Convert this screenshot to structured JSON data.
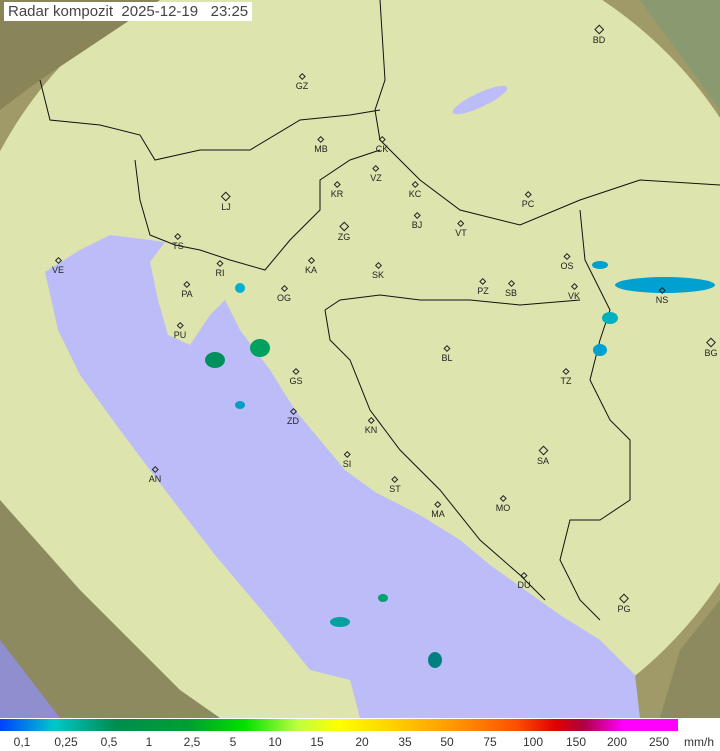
{
  "title": "Radar kompozit  2025-12-19   23:25",
  "cities": [
    "GZ",
    "BD",
    "MB",
    "CK",
    "VZ",
    "KR",
    "KC",
    "PC",
    "LJ",
    "ZG",
    "BJ",
    "VT",
    "TS",
    "VE",
    "RI",
    "KA",
    "SK",
    "OS",
    "PA",
    "OG",
    "PZ",
    "SB",
    "VK",
    "NS",
    "PU",
    "BG",
    "GS",
    "BL",
    "TZ",
    "ZD",
    "KN",
    "SA",
    "SI",
    "AN",
    "ST",
    "MA",
    "MO",
    "DU",
    "PG"
  ],
  "legend": {
    "labels": [
      "0,1",
      "0,25",
      "0,5",
      "1",
      "2,5",
      "5",
      "10",
      "15",
      "20",
      "35",
      "50",
      "75",
      "100",
      "150",
      "200",
      "250"
    ],
    "unit": "mm/h"
  },
  "colors": {
    "sea": "#bcbcf8",
    "land": "#d8e0a8",
    "outside": "#a09a68"
  }
}
